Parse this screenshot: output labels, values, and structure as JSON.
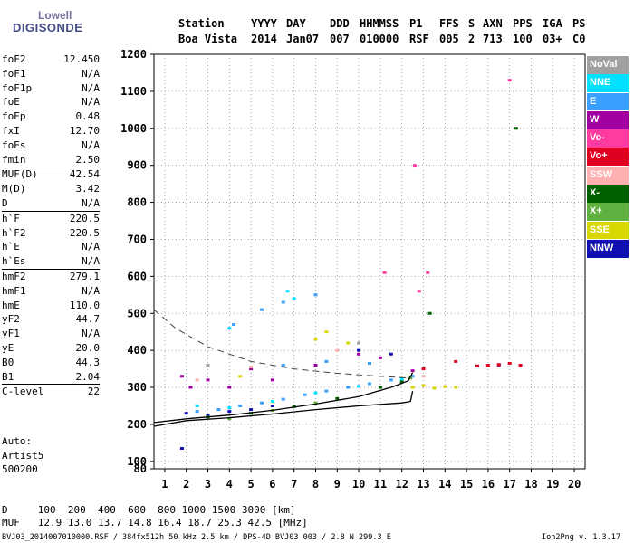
{
  "logo": {
    "line1": "Lowell",
    "line2": "DIGISONDE"
  },
  "header": {
    "row1": [
      "Station",
      "YYYY",
      "DAY",
      "DDD",
      "HHMMSS",
      "P1",
      "FFS",
      "S",
      "AXN",
      "PPS",
      "IGA",
      "PS"
    ],
    "row2": [
      "Boa Vista",
      "2014",
      "Jan07",
      "007",
      "010000",
      "RSF",
      "005",
      "2",
      "713",
      "100",
      "03+",
      "C0"
    ]
  },
  "params": [
    {
      "k": "foF2",
      "v": "12.450"
    },
    {
      "k": "foF1",
      "v": "N/A"
    },
    {
      "k": "foF1p",
      "v": "N/A"
    },
    {
      "k": "foE",
      "v": "N/A"
    },
    {
      "k": "foEp",
      "v": "0.48"
    },
    {
      "k": "fxI",
      "v": "12.70"
    },
    {
      "k": "foEs",
      "v": "N/A"
    },
    {
      "k": "fmin",
      "v": "2.50",
      "sep": false
    },
    {
      "k": "MUF(D)",
      "v": "42.54",
      "sep": true
    },
    {
      "k": "M(D)",
      "v": "3.42"
    },
    {
      "k": "D",
      "v": "N/A"
    },
    {
      "k": "h`F",
      "v": "220.5",
      "sep": true
    },
    {
      "k": "h`F2",
      "v": "220.5"
    },
    {
      "k": "h`E",
      "v": "N/A"
    },
    {
      "k": "h`Es",
      "v": "N/A"
    },
    {
      "k": "hmF2",
      "v": "279.1",
      "sep": true
    },
    {
      "k": "hmF1",
      "v": "N/A"
    },
    {
      "k": "hmE",
      "v": "110.0"
    },
    {
      "k": "yF2",
      "v": "44.7"
    },
    {
      "k": "yF1",
      "v": "N/A"
    },
    {
      "k": "yE",
      "v": "20.0"
    },
    {
      "k": "B0",
      "v": "44.3"
    },
    {
      "k": "B1",
      "v": "2.04"
    },
    {
      "k": "C-level",
      "v": "22",
      "sep": true
    }
  ],
  "extra": {
    "auto": "Auto:",
    "artist": "Artist5",
    "version": "500200"
  },
  "bottom": {
    "d_row": "D     100  200  400  600  800 1000 1500 3000 [km]",
    "muf_row": "MUF   12.9 13.0 13.7 14.8 16.4 18.7 25.3 42.5 [MHz]",
    "file_info": "BVJ03_2014007010000.RSF / 384fx512h 50 kHz 2.5 km / DPS-4D BVJ03 003 / 2.8 N 299.3 E",
    "program": "Ion2Png v. 1.3.17"
  },
  "legend": [
    {
      "name": "NoVal",
      "color": "#a0a0a0"
    },
    {
      "name": "NNE",
      "color": "#00e0ff"
    },
    {
      "name": "E",
      "color": "#3aa0ff"
    },
    {
      "name": "W",
      "color": "#a000a0"
    },
    {
      "name": "Vo-",
      "color": "#ff3aa0"
    },
    {
      "name": "Vo+",
      "color": "#e00020"
    },
    {
      "name": "SSW",
      "color": "#ffb0b0"
    },
    {
      "name": "X-",
      "color": "#006000"
    },
    {
      "name": "X+",
      "color": "#60b040"
    },
    {
      "name": "SSE",
      "color": "#d8d800"
    },
    {
      "name": "NNW",
      "color": "#1010b0"
    }
  ],
  "chart_data": {
    "type": "scatter",
    "xlim": [
      0.5,
      20.5
    ],
    "ylim": [
      80,
      1200
    ],
    "x_ticks": [
      1,
      2,
      3,
      4,
      5,
      6,
      7,
      8,
      9,
      10,
      11,
      12,
      13,
      14,
      15,
      16,
      17,
      18,
      19,
      20
    ],
    "y_ticks": [
      80,
      100,
      200,
      300,
      400,
      500,
      600,
      700,
      800,
      900,
      1000,
      1100,
      1200
    ],
    "x_grid_dotted": true,
    "series": [
      {
        "name": "E",
        "color": "#3aa0ff",
        "points": [
          [
            2.5,
            235
          ],
          [
            3.5,
            240
          ],
          [
            4.5,
            250
          ],
          [
            5.5,
            258
          ],
          [
            6.5,
            268
          ],
          [
            7.5,
            280
          ],
          [
            8.5,
            290
          ],
          [
            9.5,
            300
          ],
          [
            10.5,
            310
          ],
          [
            11.5,
            320
          ],
          [
            12.5,
            330
          ],
          [
            6.5,
            360
          ],
          [
            8.5,
            370
          ],
          [
            10.5,
            365
          ],
          [
            4.2,
            470
          ],
          [
            5.5,
            510
          ],
          [
            6.5,
            530
          ],
          [
            8.0,
            550
          ]
        ]
      },
      {
        "name": "NNE",
        "color": "#00e0ff",
        "points": [
          [
            2.5,
            250
          ],
          [
            4.0,
            245
          ],
          [
            6.0,
            262
          ],
          [
            8.0,
            285
          ],
          [
            10.0,
            303
          ],
          [
            12.0,
            322
          ],
          [
            6.7,
            560
          ],
          [
            7.0,
            540
          ],
          [
            4.0,
            460
          ]
        ]
      },
      {
        "name": "W",
        "color": "#a000a0",
        "points": [
          [
            1.8,
            330
          ],
          [
            2.2,
            300
          ],
          [
            3.0,
            320
          ],
          [
            4.0,
            300
          ],
          [
            5.0,
            350
          ],
          [
            6.0,
            320
          ],
          [
            8.0,
            360
          ],
          [
            10.0,
            390
          ],
          [
            11.0,
            380
          ],
          [
            12.5,
            345
          ],
          [
            16.5,
            360
          ]
        ]
      },
      {
        "name": "NNW",
        "color": "#1010b0",
        "points": [
          [
            2.0,
            230
          ],
          [
            3.0,
            225
          ],
          [
            4.0,
            235
          ],
          [
            5.0,
            240
          ],
          [
            6.0,
            250
          ],
          [
            10.0,
            400
          ],
          [
            11.5,
            390
          ],
          [
            1.8,
            135
          ]
        ]
      },
      {
        "name": "Vo+",
        "color": "#e00020",
        "points": [
          [
            15.5,
            358
          ],
          [
            16.0,
            360
          ],
          [
            16.5,
            362
          ],
          [
            17.0,
            365
          ],
          [
            17.5,
            360
          ],
          [
            13.0,
            350
          ],
          [
            14.5,
            370
          ]
        ]
      },
      {
        "name": "Vo-",
        "color": "#ff3aa0",
        "points": [
          [
            12.6,
            900
          ],
          [
            13.2,
            610
          ],
          [
            12.8,
            560
          ],
          [
            17.0,
            1130
          ],
          [
            11.2,
            610
          ]
        ]
      },
      {
        "name": "SSE",
        "color": "#d8d800",
        "points": [
          [
            12.5,
            300
          ],
          [
            13.0,
            305
          ],
          [
            13.5,
            298
          ],
          [
            14.0,
            302
          ],
          [
            14.5,
            300
          ],
          [
            8.0,
            430
          ],
          [
            8.5,
            450
          ],
          [
            9.5,
            420
          ],
          [
            4.5,
            330
          ]
        ]
      },
      {
        "name": "X-",
        "color": "#006000",
        "points": [
          [
            3.0,
            220
          ],
          [
            5.0,
            230
          ],
          [
            7.0,
            248
          ],
          [
            9.0,
            270
          ],
          [
            11.0,
            300
          ],
          [
            12.0,
            315
          ],
          [
            13.3,
            500
          ],
          [
            17.3,
            1000
          ]
        ]
      },
      {
        "name": "X+",
        "color": "#60b040",
        "points": [
          [
            4.0,
            215
          ],
          [
            6.0,
            238
          ],
          [
            8.0,
            258
          ],
          [
            12.4,
            325
          ]
        ]
      },
      {
        "name": "SSW",
        "color": "#ffb0b0",
        "points": [
          [
            2.5,
            320
          ],
          [
            5.0,
            355
          ],
          [
            9.0,
            400
          ],
          [
            13.0,
            330
          ]
        ]
      },
      {
        "name": "NoVal",
        "color": "#a0a0a0",
        "points": [
          [
            3.0,
            360
          ],
          [
            10.0,
            420
          ]
        ]
      }
    ],
    "traces": [
      {
        "style": "solid",
        "points": [
          [
            0.5,
            195
          ],
          [
            2,
            210
          ],
          [
            4,
            218
          ],
          [
            6,
            228
          ],
          [
            8,
            240
          ],
          [
            10,
            250
          ],
          [
            12,
            258
          ],
          [
            12.4,
            262
          ],
          [
            12.5,
            290
          ]
        ]
      },
      {
        "style": "solid",
        "points": [
          [
            0.5,
            205
          ],
          [
            2,
            215
          ],
          [
            4,
            225
          ],
          [
            6,
            238
          ],
          [
            8,
            255
          ],
          [
            10,
            275
          ],
          [
            11.5,
            300
          ],
          [
            12.3,
            318
          ],
          [
            12.5,
            340
          ]
        ]
      },
      {
        "style": "dashed",
        "points": [
          [
            0.5,
            510
          ],
          [
            1.5,
            460
          ],
          [
            3,
            410
          ],
          [
            5,
            370
          ],
          [
            7,
            350
          ],
          [
            9,
            338
          ],
          [
            11,
            330
          ],
          [
            12.4,
            325
          ]
        ]
      }
    ]
  }
}
